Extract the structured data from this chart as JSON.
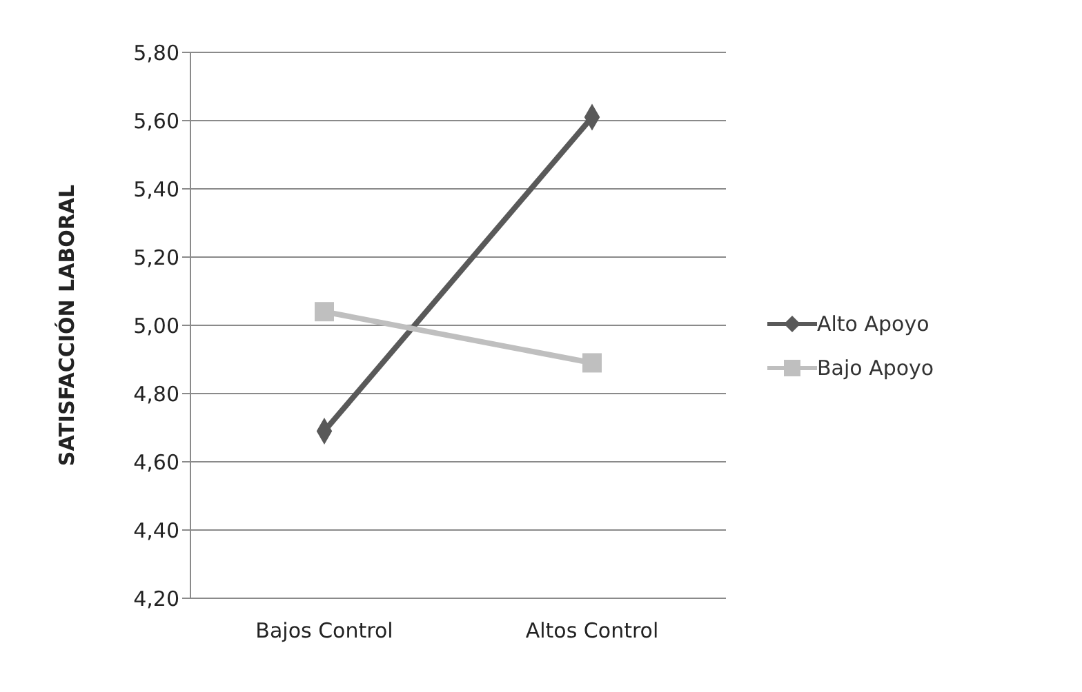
{
  "chart_data": {
    "type": "line",
    "ylabel": "SATISFACCIÓN LABORAL",
    "categories": [
      "Bajos Control",
      "Altos Control"
    ],
    "series": [
      {
        "name": "Alto Apoyo",
        "color": "#595959",
        "marker": "diamond",
        "values": [
          4.69,
          5.61
        ]
      },
      {
        "name": "Bajo Apoyo",
        "color": "#bfbfbf",
        "marker": "square",
        "values": [
          5.04,
          4.89
        ]
      }
    ],
    "ylim": [
      4.2,
      5.8
    ],
    "yticks": [
      {
        "value": 4.2,
        "label": "4,20"
      },
      {
        "value": 4.4,
        "label": "4,40"
      },
      {
        "value": 4.6,
        "label": "4,60"
      },
      {
        "value": 4.8,
        "label": "4,80"
      },
      {
        "value": 5.0,
        "label": "5,00"
      },
      {
        "value": 5.2,
        "label": "5,20"
      },
      {
        "value": 5.4,
        "label": "5,40"
      },
      {
        "value": 5.6,
        "label": "5,60"
      },
      {
        "value": 5.8,
        "label": "5,80"
      }
    ],
    "grid": "y",
    "legend": "right",
    "line_style": "solid"
  }
}
